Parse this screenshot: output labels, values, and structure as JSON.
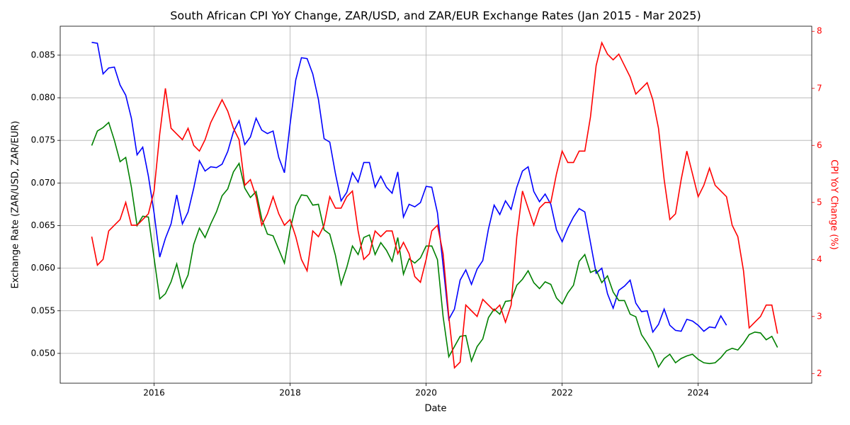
{
  "chart_data": {
    "type": "line",
    "title": "South African CPI YoY Change, ZAR/USD, and ZAR/EUR Exchange Rates (Jan 2015 - Mar 2025)",
    "xlabel": "Date",
    "ylabel": "Exchange Rate (ZAR/USD, ZAR/EUR)",
    "y2label": "CPI YoY Change (%)",
    "grid": true,
    "x": [
      "2015-01",
      "2015-02",
      "2015-03",
      "2015-04",
      "2015-05",
      "2015-06",
      "2015-07",
      "2015-08",
      "2015-09",
      "2015-10",
      "2015-11",
      "2015-12",
      "2016-01",
      "2016-02",
      "2016-03",
      "2016-04",
      "2016-05",
      "2016-06",
      "2016-07",
      "2016-08",
      "2016-09",
      "2016-10",
      "2016-11",
      "2016-12",
      "2017-01",
      "2017-02",
      "2017-03",
      "2017-04",
      "2017-05",
      "2017-06",
      "2017-07",
      "2017-08",
      "2017-09",
      "2017-10",
      "2017-11",
      "2017-12",
      "2018-01",
      "2018-02",
      "2018-03",
      "2018-04",
      "2018-05",
      "2018-06",
      "2018-07",
      "2018-08",
      "2018-09",
      "2018-10",
      "2018-11",
      "2018-12",
      "2019-01",
      "2019-02",
      "2019-03",
      "2019-04",
      "2019-05",
      "2019-06",
      "2019-07",
      "2019-08",
      "2019-09",
      "2019-10",
      "2019-11",
      "2019-12",
      "2020-01",
      "2020-02",
      "2020-03",
      "2020-04",
      "2020-05",
      "2020-06",
      "2020-07",
      "2020-08",
      "2020-09",
      "2020-10",
      "2020-11",
      "2020-12",
      "2021-01",
      "2021-02",
      "2021-03",
      "2021-04",
      "2021-05",
      "2021-06",
      "2021-07",
      "2021-08",
      "2021-09",
      "2021-10",
      "2021-11",
      "2021-12",
      "2022-01",
      "2022-02",
      "2022-03",
      "2022-04",
      "2022-05",
      "2022-06",
      "2022-07",
      "2022-08",
      "2022-09",
      "2022-10",
      "2022-11",
      "2022-12",
      "2023-01",
      "2023-02",
      "2023-03",
      "2023-04",
      "2023-05",
      "2023-06",
      "2023-07",
      "2023-08",
      "2023-09",
      "2023-10",
      "2023-11",
      "2023-12",
      "2024-01",
      "2024-02",
      "2024-03",
      "2024-04",
      "2024-05",
      "2024-06",
      "2024-07",
      "2024-08",
      "2024-09",
      "2024-10",
      "2024-11",
      "2024-12",
      "2025-01",
      "2025-02"
    ],
    "xlim": [
      2014.62,
      2025.67
    ],
    "xticks": [
      2016,
      2018,
      2020,
      2022,
      2024
    ],
    "ylim": [
      0.0465,
      0.0884
    ],
    "yticks": [
      {
        "value": 0.05,
        "label": "0.050"
      },
      {
        "value": 0.055,
        "label": "0.055"
      },
      {
        "value": 0.06,
        "label": "0.060"
      },
      {
        "value": 0.065,
        "label": "0.065"
      },
      {
        "value": 0.07,
        "label": "0.070"
      },
      {
        "value": 0.075,
        "label": "0.075"
      },
      {
        "value": 0.08,
        "label": "0.080"
      },
      {
        "value": 0.085,
        "label": "0.085"
      }
    ],
    "y2lim": [
      1.83,
      8.09
    ],
    "y2ticks": [
      2,
      3,
      4,
      5,
      6,
      7,
      8
    ],
    "series": [
      {
        "color": "#0000ff",
        "values": [
          0.0865,
          0.0864,
          0.0828,
          0.0835,
          0.0836,
          0.0815,
          0.0803,
          0.0776,
          0.0733,
          0.0742,
          0.0708,
          0.0665,
          0.0613,
          0.0635,
          0.0652,
          0.0686,
          0.0652,
          0.0666,
          0.0694,
          0.0726,
          0.0714,
          0.0719,
          0.0718,
          0.0722,
          0.0737,
          0.076,
          0.0773,
          0.0745,
          0.0754,
          0.0776,
          0.0762,
          0.0758,
          0.0761,
          0.073,
          0.0712,
          0.0769,
          0.0821,
          0.0847,
          0.0846,
          0.0828,
          0.0798,
          0.0752,
          0.0748,
          0.0711,
          0.0679,
          0.0689,
          0.0712,
          0.0701,
          0.0724,
          0.0724,
          0.0695,
          0.0708,
          0.0695,
          0.0688,
          0.0713,
          0.066,
          0.0675,
          0.0672,
          0.0677,
          0.0696,
          0.0695,
          0.0665,
          0.0603,
          0.054,
          0.0552,
          0.0586,
          0.0598,
          0.0581,
          0.0599,
          0.0609,
          0.0646,
          0.0674,
          0.0663,
          0.0679,
          0.0669,
          0.0695,
          0.0714,
          0.0719,
          0.069,
          0.0678,
          0.0687,
          0.0675,
          0.0645,
          0.0631,
          0.0647,
          0.066,
          0.067,
          0.0666,
          0.063,
          0.0594,
          0.06,
          0.057,
          0.0553,
          0.0574,
          0.0579,
          0.0586,
          0.0559,
          0.0549,
          0.055,
          0.0525,
          0.0534,
          0.0552,
          0.0533,
          0.0527,
          0.0526,
          0.054,
          0.0538,
          0.0533,
          0.0526,
          0.0531,
          0.053,
          0.0544,
          0.0533,
          null,
          null,
          null,
          null,
          null,
          null,
          null,
          null,
          null
        ]
      },
      {
        "color": "#008000",
        "values": [
          0.0744,
          0.0761,
          0.0765,
          0.0771,
          0.075,
          0.0725,
          0.073,
          0.0695,
          0.065,
          0.0661,
          0.066,
          0.0612,
          0.0564,
          0.057,
          0.0584,
          0.0605,
          0.0577,
          0.0592,
          0.0628,
          0.0647,
          0.0636,
          0.0652,
          0.0666,
          0.0685,
          0.0693,
          0.0713,
          0.0723,
          0.0694,
          0.0683,
          0.069,
          0.0658,
          0.064,
          0.0638,
          0.0622,
          0.0606,
          0.0645,
          0.0673,
          0.0686,
          0.0685,
          0.0674,
          0.0675,
          0.0645,
          0.064,
          0.0615,
          0.0581,
          0.0601,
          0.0626,
          0.0616,
          0.0636,
          0.0639,
          0.0616,
          0.063,
          0.0621,
          0.0608,
          0.0636,
          0.0593,
          0.0611,
          0.0606,
          0.0612,
          0.0626,
          0.0626,
          0.061,
          0.0543,
          0.0496,
          0.0508,
          0.052,
          0.0521,
          0.0491,
          0.0508,
          0.0517,
          0.0542,
          0.0552,
          0.0546,
          0.0561,
          0.0562,
          0.058,
          0.0587,
          0.0597,
          0.0583,
          0.0576,
          0.0584,
          0.0581,
          0.0565,
          0.0558,
          0.0571,
          0.058,
          0.0608,
          0.0616,
          0.0595,
          0.0598,
          0.0583,
          0.0591,
          0.0572,
          0.0562,
          0.0562,
          0.0546,
          0.0543,
          0.0522,
          0.0512,
          0.0501,
          0.0484,
          0.0494,
          0.0499,
          0.0489,
          0.0494,
          0.0497,
          0.0499,
          0.0493,
          0.0489,
          0.0488,
          0.0489,
          0.0495,
          0.0503,
          0.0506,
          0.0504,
          0.0512,
          0.0522,
          0.0525,
          0.0524,
          0.0516,
          0.052,
          0.0507
        ]
      },
      {
        "color": "#ff0000",
        "axis": "y2",
        "values": [
          4.4,
          3.9,
          4.0,
          4.5,
          4.6,
          4.7,
          5.0,
          4.6,
          4.6,
          4.7,
          4.8,
          5.2,
          6.2,
          7.0,
          6.3,
          6.2,
          6.1,
          6.3,
          6.0,
          5.9,
          6.1,
          6.4,
          6.6,
          6.8,
          6.6,
          6.3,
          6.1,
          5.3,
          5.4,
          5.1,
          4.6,
          4.8,
          5.1,
          4.8,
          4.6,
          4.7,
          4.4,
          4.0,
          3.8,
          4.5,
          4.4,
          4.6,
          5.1,
          4.9,
          4.9,
          5.1,
          5.2,
          4.5,
          4.0,
          4.1,
          4.5,
          4.4,
          4.5,
          4.5,
          4.1,
          4.3,
          4.1,
          3.7,
          3.6,
          4.0,
          4.5,
          4.6,
          4.1,
          3.0,
          2.1,
          2.2,
          3.2,
          3.1,
          3.0,
          3.3,
          3.2,
          3.1,
          3.2,
          2.9,
          3.2,
          4.4,
          5.2,
          4.9,
          4.6,
          4.9,
          5.0,
          5.0,
          5.5,
          5.9,
          5.7,
          5.7,
          5.9,
          5.9,
          6.5,
          7.4,
          7.8,
          7.6,
          7.5,
          7.6,
          7.4,
          7.2,
          6.9,
          7.0,
          7.1,
          6.8,
          6.3,
          5.4,
          4.7,
          4.8,
          5.4,
          5.9,
          5.5,
          5.1,
          5.3,
          5.6,
          5.3,
          5.2,
          5.1,
          4.6,
          4.4,
          3.8,
          2.8,
          2.9,
          3.0,
          3.2,
          3.2,
          2.7
        ]
      }
    ]
  }
}
